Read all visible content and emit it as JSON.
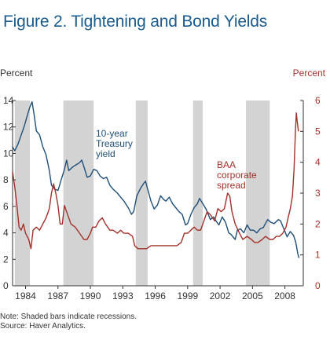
{
  "figure": {
    "title": "Figure 2. Tightening and Bond Yields",
    "left_axis_label": "Percent",
    "right_axis_label": "Percent",
    "note": "Note: Shaded bars indicate recessions.",
    "source": "Source: Haver Analytics."
  },
  "colors": {
    "title": "#1a5b8e",
    "treasury": "#1e4f7a",
    "baa": "#a33129",
    "recession": "#d3d3d3",
    "axis": "#333333"
  },
  "chart_data": {
    "type": "line",
    "title": "Figure 2. Tightening and Bond Yields",
    "x_ticks": [
      "1984",
      "1987",
      "1990",
      "1993",
      "1996",
      "1999",
      "2002",
      "2005",
      "2008"
    ],
    "xlim": [
      1982.8,
      2009.7
    ],
    "left_y": {
      "label": "Percent",
      "ylim": [
        0,
        14
      ],
      "ticks": [
        0,
        2,
        4,
        6,
        8,
        10,
        12,
        14
      ]
    },
    "right_y": {
      "label": "Percent",
      "ylim": [
        0,
        6
      ],
      "ticks": [
        0,
        1,
        2,
        3,
        4,
        5,
        6
      ]
    },
    "recessions": [
      [
        1983.0,
        1984.4
      ],
      [
        1987.5,
        1990.3
      ],
      [
        1994.2,
        1995.3
      ],
      [
        1999.5,
        2000.4
      ],
      [
        2004.4,
        2006.6
      ]
    ],
    "series": [
      {
        "name": "10-year Treasury yield",
        "label_lines": [
          "10-year",
          "Treasury",
          "yield"
        ],
        "axis": "left",
        "points": [
          [
            1982.8,
            10.5
          ],
          [
            1983.0,
            10.2
          ],
          [
            1983.3,
            10.7
          ],
          [
            1983.6,
            11.4
          ],
          [
            1983.9,
            12.1
          ],
          [
            1984.1,
            12.7
          ],
          [
            1984.4,
            13.5
          ],
          [
            1984.6,
            13.9
          ],
          [
            1984.8,
            12.9
          ],
          [
            1985.0,
            11.7
          ],
          [
            1985.3,
            11.4
          ],
          [
            1985.6,
            10.5
          ],
          [
            1985.9,
            9.9
          ],
          [
            1986.2,
            8.7
          ],
          [
            1986.4,
            7.6
          ],
          [
            1986.7,
            7.3
          ],
          [
            1987.0,
            7.2
          ],
          [
            1987.3,
            8.0
          ],
          [
            1987.6,
            8.8
          ],
          [
            1987.8,
            9.5
          ],
          [
            1988.0,
            8.7
          ],
          [
            1988.4,
            9.0
          ],
          [
            1988.8,
            9.2
          ],
          [
            1989.0,
            9.3
          ],
          [
            1989.2,
            9.5
          ],
          [
            1989.4,
            9.0
          ],
          [
            1989.7,
            8.2
          ],
          [
            1990.0,
            8.3
          ],
          [
            1990.3,
            8.8
          ],
          [
            1990.6,
            8.7
          ],
          [
            1990.9,
            8.3
          ],
          [
            1991.2,
            8.1
          ],
          [
            1991.5,
            8.2
          ],
          [
            1991.8,
            7.6
          ],
          [
            1992.1,
            7.3
          ],
          [
            1992.5,
            7.0
          ],
          [
            1992.8,
            6.7
          ],
          [
            1993.1,
            6.4
          ],
          [
            1993.5,
            5.9
          ],
          [
            1993.8,
            5.4
          ],
          [
            1994.0,
            5.6
          ],
          [
            1994.3,
            6.8
          ],
          [
            1994.6,
            7.3
          ],
          [
            1994.9,
            7.7
          ],
          [
            1995.1,
            7.9
          ],
          [
            1995.3,
            7.3
          ],
          [
            1995.6,
            6.4
          ],
          [
            1995.9,
            5.8
          ],
          [
            1996.2,
            6.1
          ],
          [
            1996.5,
            6.8
          ],
          [
            1996.8,
            6.5
          ],
          [
            1997.0,
            6.4
          ],
          [
            1997.3,
            6.7
          ],
          [
            1997.6,
            6.2
          ],
          [
            1997.9,
            5.9
          ],
          [
            1998.2,
            5.6
          ],
          [
            1998.5,
            5.4
          ],
          [
            1998.8,
            4.6
          ],
          [
            1999.0,
            4.7
          ],
          [
            1999.3,
            5.4
          ],
          [
            1999.6,
            5.9
          ],
          [
            1999.9,
            6.2
          ],
          [
            2000.1,
            6.6
          ],
          [
            2000.4,
            6.2
          ],
          [
            2000.7,
            5.8
          ],
          [
            2000.9,
            5.4
          ],
          [
            2001.1,
            5.0
          ],
          [
            2001.4,
            5.2
          ],
          [
            2001.7,
            4.8
          ],
          [
            2001.9,
            4.6
          ],
          [
            2002.2,
            5.2
          ],
          [
            2002.5,
            4.8
          ],
          [
            2002.8,
            4.0
          ],
          [
            2003.0,
            3.9
          ],
          [
            2003.4,
            3.5
          ],
          [
            2003.6,
            4.2
          ],
          [
            2003.9,
            4.3
          ],
          [
            2004.2,
            4.0
          ],
          [
            2004.5,
            4.6
          ],
          [
            2004.8,
            4.2
          ],
          [
            2005.1,
            4.2
          ],
          [
            2005.4,
            4.0
          ],
          [
            2005.7,
            4.3
          ],
          [
            2006.0,
            4.4
          ],
          [
            2006.4,
            5.0
          ],
          [
            2006.7,
            4.8
          ],
          [
            2007.0,
            4.7
          ],
          [
            2007.4,
            5.0
          ],
          [
            2007.6,
            4.9
          ],
          [
            2007.9,
            4.3
          ],
          [
            2008.2,
            3.7
          ],
          [
            2008.5,
            4.1
          ],
          [
            2008.8,
            3.8
          ],
          [
            2009.0,
            3.3
          ],
          [
            2009.2,
            2.4
          ],
          [
            2009.3,
            2.1
          ]
        ]
      },
      {
        "name": "BAA corporate spread",
        "label_lines": [
          "BAA",
          "corporate",
          "spread"
        ],
        "axis": "right",
        "points": [
          [
            1982.8,
            3.7
          ],
          [
            1983.0,
            3.2
          ],
          [
            1983.2,
            2.6
          ],
          [
            1983.4,
            1.9
          ],
          [
            1983.6,
            1.8
          ],
          [
            1983.8,
            2.0
          ],
          [
            1984.0,
            1.7
          ],
          [
            1984.3,
            1.5
          ],
          [
            1984.5,
            1.2
          ],
          [
            1984.7,
            1.8
          ],
          [
            1985.0,
            1.9
          ],
          [
            1985.3,
            1.8
          ],
          [
            1985.6,
            2.0
          ],
          [
            1985.9,
            2.2
          ],
          [
            1986.2,
            2.5
          ],
          [
            1986.4,
            3.0
          ],
          [
            1986.6,
            3.3
          ],
          [
            1986.8,
            3.0
          ],
          [
            1987.0,
            2.6
          ],
          [
            1987.2,
            2.0
          ],
          [
            1987.4,
            2.0
          ],
          [
            1987.6,
            2.6
          ],
          [
            1987.9,
            2.3
          ],
          [
            1988.2,
            2.0
          ],
          [
            1988.6,
            1.9
          ],
          [
            1989.0,
            1.7
          ],
          [
            1989.4,
            1.5
          ],
          [
            1989.7,
            1.5
          ],
          [
            1990.0,
            1.7
          ],
          [
            1990.2,
            1.9
          ],
          [
            1990.5,
            1.9
          ],
          [
            1990.8,
            2.1
          ],
          [
            1991.1,
            2.2
          ],
          [
            1991.4,
            2.0
          ],
          [
            1991.8,
            1.8
          ],
          [
            1992.1,
            1.8
          ],
          [
            1992.5,
            1.7
          ],
          [
            1992.8,
            1.8
          ],
          [
            1993.1,
            1.7
          ],
          [
            1993.5,
            1.7
          ],
          [
            1993.9,
            1.6
          ],
          [
            1994.1,
            1.3
          ],
          [
            1994.4,
            1.2
          ],
          [
            1994.8,
            1.2
          ],
          [
            1995.2,
            1.2
          ],
          [
            1995.6,
            1.3
          ],
          [
            1996.0,
            1.3
          ],
          [
            1996.5,
            1.3
          ],
          [
            1997.0,
            1.3
          ],
          [
            1997.5,
            1.3
          ],
          [
            1998.0,
            1.3
          ],
          [
            1998.4,
            1.4
          ],
          [
            1998.7,
            1.7
          ],
          [
            1999.0,
            1.7
          ],
          [
            1999.3,
            1.8
          ],
          [
            1999.6,
            1.9
          ],
          [
            1999.9,
            1.8
          ],
          [
            2000.2,
            1.8
          ],
          [
            2000.5,
            2.1
          ],
          [
            2000.8,
            2.4
          ],
          [
            2001.1,
            2.3
          ],
          [
            2001.5,
            2.1
          ],
          [
            2001.8,
            2.5
          ],
          [
            2002.1,
            2.4
          ],
          [
            2002.4,
            2.5
          ],
          [
            2002.7,
            3.0
          ],
          [
            2002.9,
            2.9
          ],
          [
            2003.1,
            2.4
          ],
          [
            2003.4,
            2.0
          ],
          [
            2003.8,
            1.7
          ],
          [
            2004.1,
            1.5
          ],
          [
            2004.5,
            1.6
          ],
          [
            2004.9,
            1.5
          ],
          [
            2005.2,
            1.4
          ],
          [
            2005.5,
            1.4
          ],
          [
            2005.9,
            1.5
          ],
          [
            2006.2,
            1.6
          ],
          [
            2006.6,
            1.5
          ],
          [
            2006.9,
            1.5
          ],
          [
            2007.2,
            1.6
          ],
          [
            2007.5,
            1.6
          ],
          [
            2007.8,
            1.7
          ],
          [
            2008.1,
            1.9
          ],
          [
            2008.3,
            2.2
          ],
          [
            2008.5,
            2.5
          ],
          [
            2008.7,
            2.9
          ],
          [
            2008.85,
            3.8
          ],
          [
            2008.95,
            4.8
          ],
          [
            2009.05,
            5.6
          ],
          [
            2009.15,
            5.3
          ],
          [
            2009.25,
            5.0
          ]
        ]
      }
    ]
  }
}
